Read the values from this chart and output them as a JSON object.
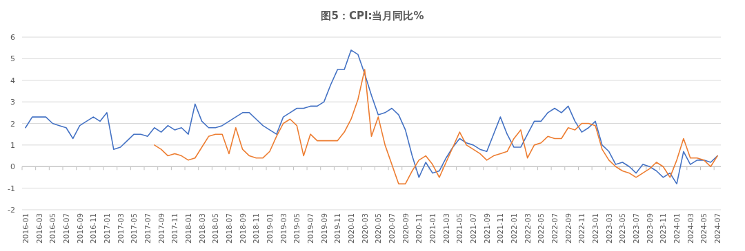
{
  "chart_data": {
    "type": "line",
    "title": "图5：CPI:当月同比%",
    "categories": [
      "2016-01",
      null,
      "2016-03",
      null,
      "2016-05",
      null,
      "2016-07",
      null,
      "2016-09",
      null,
      "2016-11",
      null,
      "2017-01",
      null,
      "2017-03",
      null,
      "2017-05",
      null,
      "2017-07",
      null,
      "2017-09",
      null,
      "2017-11",
      null,
      "2018-01",
      null,
      "2018-03",
      null,
      "2018-05",
      null,
      "2018-07",
      null,
      "2018-09",
      null,
      "2018-11",
      null,
      "2019-01",
      null,
      "2019-03",
      null,
      "2019-05",
      null,
      "2019-07",
      null,
      "2019-09",
      null,
      "2019-11",
      null,
      "2020-01",
      null,
      "2020-03",
      null,
      "2020-05",
      null,
      "2020-07",
      null,
      "2020-09",
      null,
      "2020-11",
      null,
      "2021-01",
      null,
      "2021-03",
      null,
      "2021-05",
      null,
      "2021-07",
      null,
      "2021-09",
      null,
      "2021-11",
      null,
      "2022-01",
      null,
      "2022-03",
      null,
      "2022-05",
      null,
      "2022-07",
      null,
      "2022-09",
      null,
      "2022-11",
      null,
      "2023-01",
      null,
      "2023-03",
      null,
      "2023-05",
      null,
      "2023-07",
      null,
      "2023-09",
      null,
      "2023-11",
      null,
      "2024-01",
      null,
      "2024-03",
      null,
      "2024-05",
      null,
      "2024-07"
    ],
    "series": [
      {
        "color": "#4472c4",
        "values": [
          1.8,
          2.3,
          2.3,
          2.3,
          2.0,
          1.9,
          1.8,
          1.3,
          1.9,
          2.1,
          2.3,
          2.1,
          2.5,
          0.8,
          0.9,
          1.2,
          1.5,
          1.5,
          1.4,
          1.8,
          1.6,
          1.9,
          1.7,
          1.8,
          1.5,
          2.9,
          2.1,
          1.8,
          1.8,
          1.9,
          2.1,
          2.3,
          2.5,
          2.5,
          2.2,
          1.9,
          1.7,
          1.5,
          2.3,
          2.5,
          2.7,
          2.7,
          2.8,
          2.8,
          3.0,
          3.8,
          4.5,
          4.5,
          5.4,
          5.2,
          4.3,
          3.3,
          2.4,
          2.5,
          2.7,
          2.4,
          1.7,
          0.5,
          -0.5,
          0.2,
          -0.3,
          -0.2,
          0.4,
          0.9,
          1.3,
          1.1,
          1.0,
          0.8,
          0.7,
          1.5,
          2.3,
          1.5,
          0.9,
          0.9,
          1.5,
          2.1,
          2.1,
          2.5,
          2.7,
          2.5,
          2.8,
          2.1,
          1.6,
          1.8,
          2.1,
          1.0,
          0.7,
          0.1,
          0.2,
          0.0,
          -0.3,
          0.1,
          0.0,
          -0.2,
          -0.5,
          -0.3,
          -0.8,
          0.7,
          0.1,
          0.3,
          0.3,
          0.2,
          0.5
        ]
      },
      {
        "color": "#ed7d31",
        "values": [
          null,
          null,
          null,
          null,
          null,
          null,
          null,
          null,
          null,
          null,
          null,
          null,
          null,
          null,
          null,
          null,
          null,
          null,
          null,
          1.0,
          0.8,
          0.5,
          0.6,
          0.5,
          0.3,
          0.4,
          0.9,
          1.4,
          1.5,
          1.5,
          0.6,
          1.8,
          0.8,
          0.5,
          0.4,
          0.4,
          0.7,
          1.4,
          2.0,
          2.2,
          1.9,
          0.5,
          1.5,
          1.2,
          1.2,
          1.2,
          1.2,
          1.6,
          2.2,
          3.1,
          4.5,
          1.4,
          2.3,
          1.0,
          0.1,
          -0.8,
          -0.8,
          -0.2,
          0.3,
          0.5,
          0.1,
          -0.5,
          0.2,
          0.9,
          1.6,
          1.0,
          0.8,
          0.6,
          0.3,
          0.5,
          0.6,
          0.7,
          1.3,
          1.7,
          0.4,
          1.0,
          1.1,
          1.4,
          1.3,
          1.3,
          1.8,
          1.7,
          2.0,
          2.0,
          1.9,
          0.8,
          0.3,
          0.0,
          -0.2,
          -0.3,
          -0.5,
          -0.3,
          -0.1,
          0.2,
          0.0,
          -0.5,
          0.3,
          1.3,
          0.4,
          0.4,
          0.3,
          0.0,
          0.5
        ]
      }
    ],
    "ylim": [
      -2,
      6
    ],
    "yticks": [
      -2,
      -1,
      0,
      1,
      2,
      3,
      4,
      5,
      6
    ],
    "grid": "y"
  }
}
